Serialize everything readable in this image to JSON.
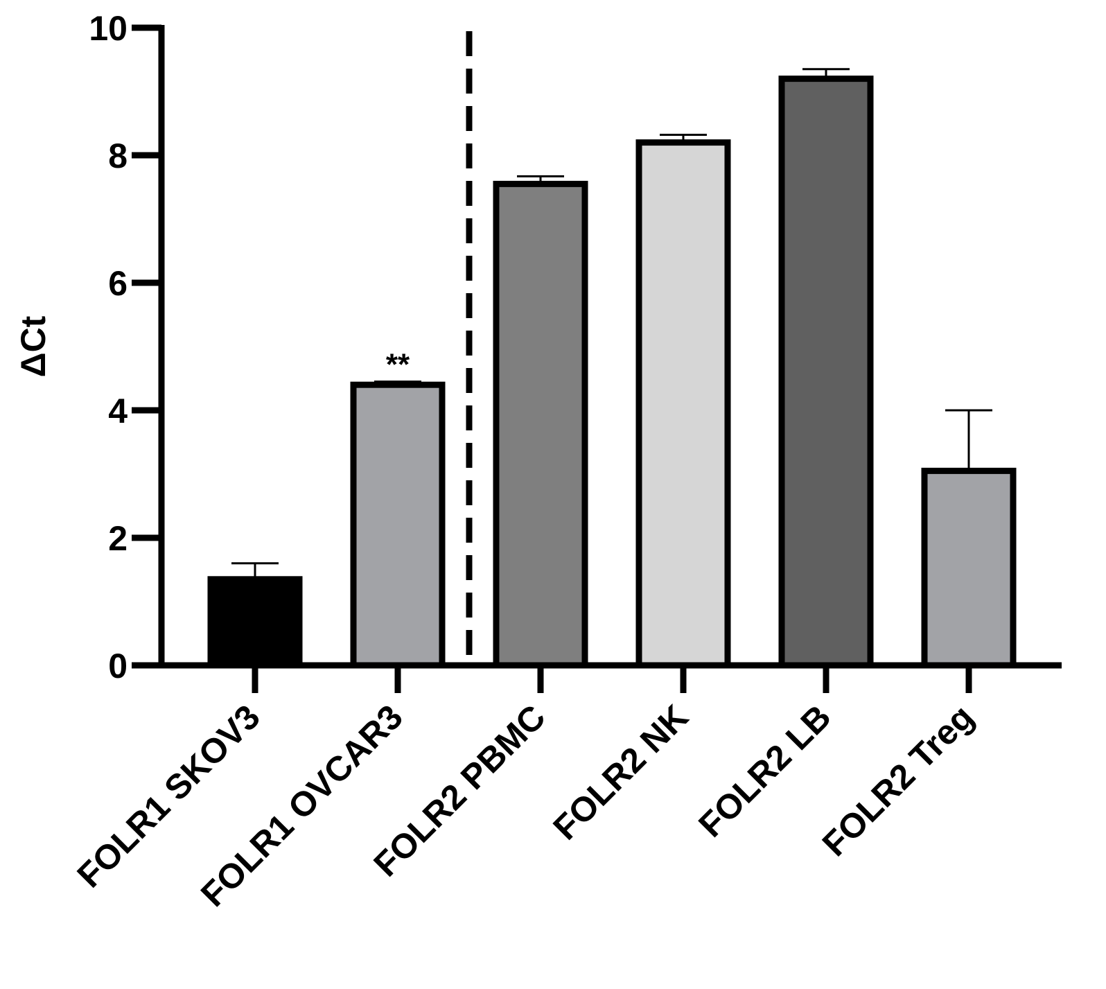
{
  "chart_data": {
    "type": "bar",
    "title": "",
    "xlabel": "",
    "ylabel": "ΔCt",
    "ylim": [
      0,
      10
    ],
    "yticks": [
      0,
      2,
      4,
      6,
      8,
      10
    ],
    "grid": false,
    "categories": [
      "FOLR1 SKOV3",
      "FOLR1 OVCAR3",
      "FOLR2 PBMC",
      "FOLR2 NK",
      "FOLR2 LB",
      "FOLR2 Treg"
    ],
    "values": [
      1.35,
      4.4,
      7.55,
      8.2,
      9.2,
      3.05
    ],
    "error_upper": [
      0.25,
      0.05,
      0.12,
      0.12,
      0.15,
      0.95
    ],
    "colors": [
      "#000000",
      "#a2a3a7",
      "#7f7f7f",
      "#d6d6d6",
      "#606060",
      "#a2a3a7"
    ],
    "annotations": [
      {
        "category": "FOLR1 OVCAR3",
        "text": "**"
      }
    ],
    "divider_between": [
      "FOLR1 OVCAR3",
      "FOLR2 PBMC"
    ]
  }
}
